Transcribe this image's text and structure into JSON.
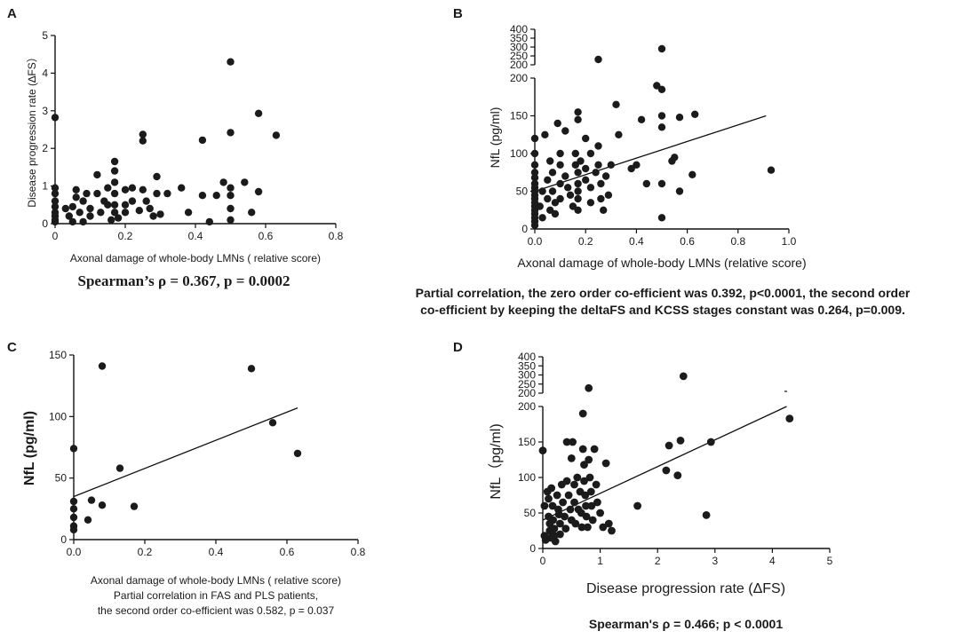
{
  "chart_data": [
    {
      "panel": "A",
      "type": "scatter",
      "xlabel": "Axonal damage of whole-body LMNs ( relative score)",
      "ylabel": "Disease progression rate (∆FS）",
      "xlim": [
        0,
        0.8
      ],
      "ylim": [
        0,
        5
      ],
      "xticks": [
        0,
        0.2,
        0.4,
        0.6,
        0.8
      ],
      "xtick_labels": [
        "0",
        "0.2",
        "0.4",
        "0.6",
        "0.8"
      ],
      "yticks": [
        0,
        1,
        2,
        3,
        4,
        5
      ],
      "ytick_labels": [
        "0",
        "1",
        "2",
        "3",
        "4",
        "5"
      ],
      "stat": "Spearman’s ρ = 0.367, p = 0.0002",
      "fit": null,
      "points": [
        [
          0,
          2.82
        ],
        [
          0,
          0.95
        ],
        [
          0,
          0.8
        ],
        [
          0,
          0.6
        ],
        [
          0,
          0.45
        ],
        [
          0,
          0.3
        ],
        [
          0,
          0.2
        ],
        [
          0,
          0.1
        ],
        [
          0,
          0.05
        ],
        [
          0.03,
          0.4
        ],
        [
          0.04,
          0.2
        ],
        [
          0.05,
          0.45
        ],
        [
          0.05,
          0.05
        ],
        [
          0.06,
          0.9
        ],
        [
          0.06,
          0.7
        ],
        [
          0.07,
          0.3
        ],
        [
          0.08,
          0.05
        ],
        [
          0.08,
          0.6
        ],
        [
          0.09,
          0.8
        ],
        [
          0.1,
          0.4
        ],
        [
          0.1,
          0.2
        ],
        [
          0.12,
          1.3
        ],
        [
          0.12,
          0.8
        ],
        [
          0.13,
          0.3
        ],
        [
          0.14,
          0.6
        ],
        [
          0.15,
          0.95
        ],
        [
          0.15,
          0.5
        ],
        [
          0.16,
          0.1
        ],
        [
          0.17,
          1.65
        ],
        [
          0.17,
          1.4
        ],
        [
          0.17,
          1.1
        ],
        [
          0.17,
          0.8
        ],
        [
          0.17,
          0.5
        ],
        [
          0.17,
          0.3
        ],
        [
          0.18,
          0.15
        ],
        [
          0.2,
          0.9
        ],
        [
          0.2,
          0.5
        ],
        [
          0.2,
          0.3
        ],
        [
          0.22,
          0.95
        ],
        [
          0.22,
          0.6
        ],
        [
          0.24,
          0.35
        ],
        [
          0.25,
          2.37
        ],
        [
          0.25,
          2.2
        ],
        [
          0.25,
          0.9
        ],
        [
          0.26,
          0.6
        ],
        [
          0.27,
          0.4
        ],
        [
          0.28,
          0.2
        ],
        [
          0.29,
          1.25
        ],
        [
          0.29,
          0.8
        ],
        [
          0.3,
          0.25
        ],
        [
          0.32,
          0.8
        ],
        [
          0.36,
          0.95
        ],
        [
          0.38,
          0.3
        ],
        [
          0.42,
          2.22
        ],
        [
          0.42,
          0.75
        ],
        [
          0.44,
          0.05
        ],
        [
          0.46,
          0.75
        ],
        [
          0.48,
          1.1
        ],
        [
          0.5,
          4.3
        ],
        [
          0.5,
          2.42
        ],
        [
          0.5,
          0.95
        ],
        [
          0.5,
          0.75
        ],
        [
          0.5,
          0.4
        ],
        [
          0.5,
          0.1
        ],
        [
          0.54,
          1.1
        ],
        [
          0.56,
          0.3
        ],
        [
          0.58,
          2.93
        ],
        [
          0.58,
          0.85
        ],
        [
          0.63,
          2.35
        ]
      ]
    },
    {
      "panel": "B",
      "type": "scatter",
      "xlabel": "Axonal damage of  whole-body LMNs (relative score)",
      "ylabel": "NfL (pg/ml)",
      "xlim": [
        0,
        1.0
      ],
      "ylim": [
        0,
        400
      ],
      "y_break": {
        "lower_max": 200,
        "upper_min": 200,
        "upper_max": 400
      },
      "xticks": [
        0,
        0.2,
        0.4,
        0.6,
        0.8,
        1.0
      ],
      "xtick_labels": [
        "0.0",
        "0.2",
        "0.4",
        "0.6",
        "0.8",
        "1.0"
      ],
      "yticks_lower": [
        0,
        50,
        100,
        150,
        200
      ],
      "ytick_labels_lower": [
        "0",
        "50",
        "100",
        "150",
        "200"
      ],
      "yticks_upper": [
        200,
        250,
        300,
        350,
        400
      ],
      "ytick_labels_upper": [
        "200",
        "250",
        "300",
        "350",
        "400"
      ],
      "stat": "Partial correlation, the zero order co-efficient was 0.392, p<0.0001, the second order co-efficient by keeping the deltaFS and KCSS stages constant was 0.264, p=0.009.",
      "fit": {
        "x": [
          0,
          0.91
        ],
        "y": [
          50,
          150
        ]
      },
      "points": [
        [
          0,
          120
        ],
        [
          0,
          100
        ],
        [
          0,
          85
        ],
        [
          0,
          75
        ],
        [
          0,
          68
        ],
        [
          0,
          60
        ],
        [
          0,
          55
        ],
        [
          0,
          50
        ],
        [
          0,
          45
        ],
        [
          0,
          40
        ],
        [
          0,
          35
        ],
        [
          0,
          30
        ],
        [
          0,
          25
        ],
        [
          0,
          20
        ],
        [
          0,
          15
        ],
        [
          0,
          10
        ],
        [
          0,
          5
        ],
        [
          0.02,
          30
        ],
        [
          0.03,
          50
        ],
        [
          0.03,
          15
        ],
        [
          0.04,
          125
        ],
        [
          0.05,
          65
        ],
        [
          0.05,
          40
        ],
        [
          0.06,
          90
        ],
        [
          0.06,
          25
        ],
        [
          0.07,
          75
        ],
        [
          0.07,
          50
        ],
        [
          0.08,
          35
        ],
        [
          0.08,
          20
        ],
        [
          0.09,
          140
        ],
        [
          0.1,
          100
        ],
        [
          0.1,
          85
        ],
        [
          0.1,
          60
        ],
        [
          0.1,
          40
        ],
        [
          0.12,
          130
        ],
        [
          0.12,
          70
        ],
        [
          0.13,
          55
        ],
        [
          0.14,
          45
        ],
        [
          0.15,
          30
        ],
        [
          0.16,
          100
        ],
        [
          0.16,
          85
        ],
        [
          0.17,
          155
        ],
        [
          0.17,
          145
        ],
        [
          0.17,
          75
        ],
        [
          0.17,
          60
        ],
        [
          0.17,
          50
        ],
        [
          0.17,
          40
        ],
        [
          0.17,
          25
        ],
        [
          0.18,
          90
        ],
        [
          0.2,
          120
        ],
        [
          0.2,
          80
        ],
        [
          0.2,
          65
        ],
        [
          0.22,
          100
        ],
        [
          0.22,
          55
        ],
        [
          0.22,
          35
        ],
        [
          0.24,
          75
        ],
        [
          0.25,
          230
        ],
        [
          0.25,
          110
        ],
        [
          0.25,
          85
        ],
        [
          0.26,
          60
        ],
        [
          0.26,
          40
        ],
        [
          0.27,
          25
        ],
        [
          0.28,
          70
        ],
        [
          0.29,
          45
        ],
        [
          0.3,
          85
        ],
        [
          0.32,
          165
        ],
        [
          0.33,
          125
        ],
        [
          0.38,
          80
        ],
        [
          0.4,
          85
        ],
        [
          0.42,
          145
        ],
        [
          0.44,
          60
        ],
        [
          0.48,
          190
        ],
        [
          0.5,
          290
        ],
        [
          0.5,
          185
        ],
        [
          0.5,
          150
        ],
        [
          0.5,
          135
        ],
        [
          0.5,
          60
        ],
        [
          0.5,
          15
        ],
        [
          0.54,
          90
        ],
        [
          0.55,
          95
        ],
        [
          0.57,
          148
        ],
        [
          0.57,
          50
        ],
        [
          0.62,
          72
        ],
        [
          0.63,
          152
        ],
        [
          0.93,
          78
        ]
      ]
    },
    {
      "panel": "C",
      "type": "scatter",
      "xlabel": "Axonal damage of whole-body LMNs ( relative score)",
      "ylabel": "NfL (pg/ml)",
      "xlim": [
        0,
        0.8
      ],
      "ylim": [
        0,
        150
      ],
      "xticks": [
        0,
        0.2,
        0.4,
        0.6,
        0.8
      ],
      "xtick_labels": [
        "0.0",
        "0.2",
        "0.4",
        "0.6",
        "0.8"
      ],
      "yticks": [
        0,
        50,
        100,
        150
      ],
      "ytick_labels": [
        "0",
        "50",
        "100",
        "150"
      ],
      "stat_lines": [
        "Partial correlation in FAS and PLS patients,",
        "the second order co-efficient was 0.582, p = 0.037"
      ],
      "fit": {
        "x": [
          0,
          0.63
        ],
        "y": [
          35,
          107
        ]
      },
      "points": [
        [
          0,
          74
        ],
        [
          0,
          31
        ],
        [
          0,
          25
        ],
        [
          0,
          18
        ],
        [
          0,
          11
        ],
        [
          0,
          8
        ],
        [
          0.04,
          16
        ],
        [
          0.05,
          32
        ],
        [
          0.08,
          141
        ],
        [
          0.08,
          28
        ],
        [
          0.13,
          58
        ],
        [
          0.17,
          27
        ],
        [
          0.5,
          139
        ],
        [
          0.56,
          95
        ],
        [
          0.63,
          70
        ]
      ]
    },
    {
      "panel": "D",
      "type": "scatter",
      "xlabel": "Disease progression rate (ΔFS)",
      "ylabel": "NfL（pg/ml)",
      "xlim": [
        0,
        5
      ],
      "ylim": [
        0,
        400
      ],
      "y_break": {
        "lower_max": 200,
        "upper_min": 200,
        "upper_max": 400
      },
      "xticks": [
        0,
        1,
        2,
        3,
        4,
        5
      ],
      "xtick_labels": [
        "0",
        "1",
        "2",
        "3",
        "4",
        "5"
      ],
      "yticks_lower": [
        0,
        50,
        100,
        150,
        200
      ],
      "ytick_labels_lower": [
        "0",
        "50",
        "100",
        "150",
        "200"
      ],
      "yticks_upper": [
        200,
        250,
        300,
        350,
        400
      ],
      "ytick_labels_upper": [
        "200",
        "250",
        "300",
        "350",
        "400"
      ],
      "stat": "Spearman's ρ = 0.466; p < 0.0001",
      "fit": {
        "x": [
          0,
          4.25
        ],
        "y": [
          40,
          200
        ]
      },
      "points": [
        [
          0,
          138
        ],
        [
          0.03,
          60
        ],
        [
          0.03,
          18
        ],
        [
          0.05,
          12
        ],
        [
          0.08,
          80
        ],
        [
          0.1,
          70
        ],
        [
          0.1,
          45
        ],
        [
          0.12,
          35
        ],
        [
          0.12,
          25
        ],
        [
          0.14,
          15
        ],
        [
          0.15,
          85
        ],
        [
          0.17,
          60
        ],
        [
          0.18,
          40
        ],
        [
          0.2,
          28
        ],
        [
          0.2,
          18
        ],
        [
          0.22,
          10
        ],
        [
          0.25,
          75
        ],
        [
          0.27,
          55
        ],
        [
          0.28,
          48
        ],
        [
          0.3,
          35
        ],
        [
          0.3,
          20
        ],
        [
          0.33,
          90
        ],
        [
          0.35,
          65
        ],
        [
          0.38,
          45
        ],
        [
          0.4,
          28
        ],
        [
          0.42,
          150
        ],
        [
          0.42,
          95
        ],
        [
          0.45,
          75
        ],
        [
          0.48,
          55
        ],
        [
          0.5,
          127
        ],
        [
          0.5,
          40
        ],
        [
          0.52,
          150
        ],
        [
          0.55,
          90
        ],
        [
          0.55,
          65
        ],
        [
          0.57,
          35
        ],
        [
          0.6,
          100
        ],
        [
          0.62,
          55
        ],
        [
          0.65,
          80
        ],
        [
          0.67,
          50
        ],
        [
          0.68,
          30
        ],
        [
          0.7,
          190
        ],
        [
          0.7,
          140
        ],
        [
          0.72,
          118
        ],
        [
          0.72,
          95
        ],
        [
          0.74,
          75
        ],
        [
          0.75,
          60
        ],
        [
          0.76,
          45
        ],
        [
          0.78,
          30
        ],
        [
          0.8,
          228
        ],
        [
          0.8,
          125
        ],
        [
          0.82,
          100
        ],
        [
          0.84,
          80
        ],
        [
          0.85,
          60
        ],
        [
          0.87,
          40
        ],
        [
          0.9,
          140
        ],
        [
          0.93,
          90
        ],
        [
          0.95,
          65
        ],
        [
          1.0,
          50
        ],
        [
          1.05,
          30
        ],
        [
          1.1,
          120
        ],
        [
          1.15,
          35
        ],
        [
          1.2,
          25
        ],
        [
          1.65,
          60
        ],
        [
          2.15,
          110
        ],
        [
          2.2,
          145
        ],
        [
          2.35,
          103
        ],
        [
          2.4,
          152
        ],
        [
          2.45,
          293
        ],
        [
          2.85,
          47
        ],
        [
          2.93,
          150
        ],
        [
          4.3,
          183
        ]
      ]
    }
  ]
}
